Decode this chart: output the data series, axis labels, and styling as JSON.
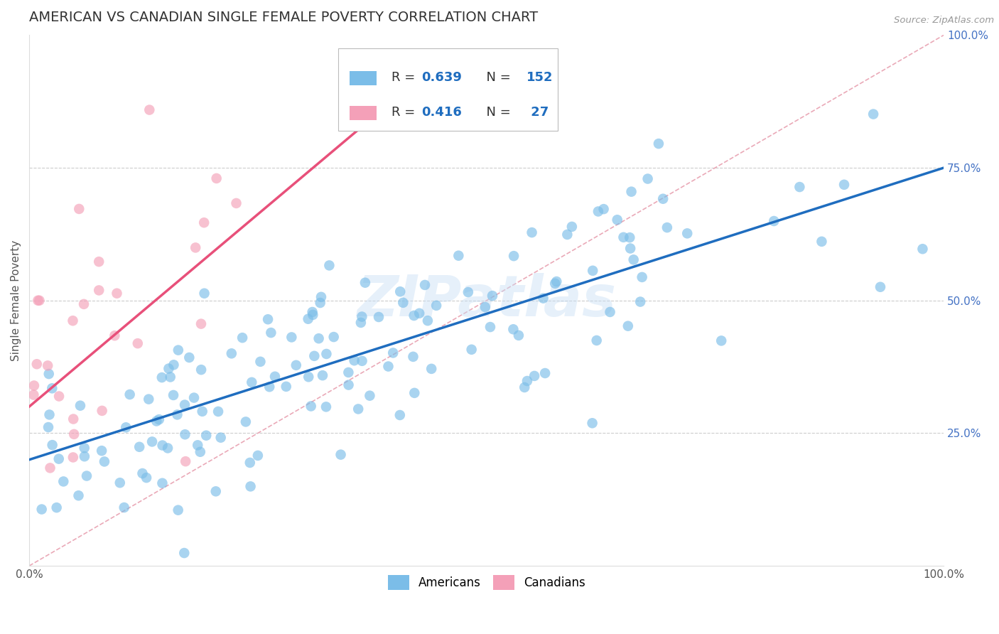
{
  "title": "AMERICAN VS CANADIAN SINGLE FEMALE POVERTY CORRELATION CHART",
  "source_text": "Source: ZipAtlas.com",
  "ylabel": "Single Female Poverty",
  "xlim": [
    0.0,
    1.0
  ],
  "ylim": [
    0.0,
    1.0
  ],
  "legend_entries": [
    {
      "label": "Americans",
      "color": "#7bbde8",
      "R": "0.639",
      "N": "152"
    },
    {
      "label": "Canadians",
      "color": "#f4a0b8",
      "R": "0.416",
      "N": " 27"
    }
  ],
  "watermark": "ZIPatlas",
  "blue_color": "#7bbde8",
  "pink_color": "#f4a0b8",
  "blue_line_color": "#1f6dbf",
  "pink_line_color": "#e8507a",
  "dashed_line_color": "#e8a0b0",
  "title_fontsize": 14,
  "axis_label_fontsize": 11,
  "tick_fontsize": 11,
  "right_tick_color": "#4472c4"
}
